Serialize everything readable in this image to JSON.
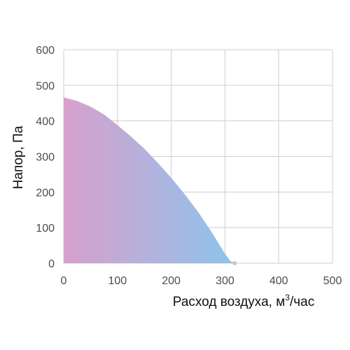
{
  "chart_data": {
    "type": "area",
    "xlabel": "Расход воздуха, м",
    "xlabel_sup": "3",
    "xlabel_suffix": "/час",
    "ylabel": "Напор, Па",
    "xlim": [
      0,
      500
    ],
    "ylim": [
      0,
      600
    ],
    "xticks": [
      "0",
      "100",
      "200",
      "300",
      "400",
      "500"
    ],
    "yticks": [
      "0",
      "100",
      "200",
      "300",
      "400",
      "500",
      "600"
    ],
    "grid": true,
    "series": [
      {
        "x": [
          0,
          25,
          50,
          75,
          100,
          125,
          150,
          175,
          200,
          225,
          250,
          275,
          300,
          310,
          318
        ],
        "values": [
          466,
          456,
          440,
          418,
          388,
          356,
          322,
          282,
          240,
          194,
          144,
          88,
          26,
          6,
          0
        ],
        "gradient_colors": [
          "#d8a0cc",
          "#8cc4ec"
        ]
      }
    ]
  }
}
